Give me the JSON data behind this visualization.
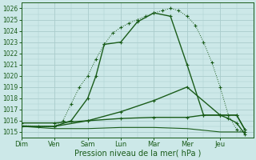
{
  "x_labels": [
    "Dim",
    "Ven",
    "Sam",
    "Lun",
    "Mar",
    "Mer",
    "Jeu"
  ],
  "x_ticks": [
    0,
    2,
    4,
    6,
    8,
    10,
    12
  ],
  "x_max": 14,
  "xlabel": "Pression niveau de la mer( hPa )",
  "ylim": [
    1014.5,
    1026.5
  ],
  "yticks": [
    1015,
    1016,
    1017,
    1018,
    1019,
    1020,
    1021,
    1022,
    1023,
    1024,
    1025,
    1026
  ],
  "bg_color": "#cce8e8",
  "grid_color": "#aacccc",
  "line_color": "#1a5c1a",
  "series": [
    {
      "x": [
        0.0,
        1.0,
        2.0,
        2.5,
        3.0,
        3.5,
        4.0,
        4.5,
        5.0,
        5.5,
        6.0,
        6.5,
        7.0,
        7.5,
        8.0,
        8.5,
        9.0,
        9.5,
        10.0,
        10.5,
        11.0,
        11.5,
        12.0,
        12.5,
        13.0,
        13.5
      ],
      "y": [
        1015.6,
        1015.5,
        1015.5,
        1016.0,
        1017.5,
        1019.0,
        1020.0,
        1021.5,
        1022.8,
        1023.8,
        1024.3,
        1024.7,
        1025.0,
        1025.3,
        1025.6,
        1025.8,
        1026.0,
        1025.8,
        1025.3,
        1024.5,
        1023.0,
        1021.2,
        1019.0,
        1016.5,
        1015.2,
        1015.0
      ],
      "marker": "+",
      "markersize": 2.5,
      "linewidth": 0.7,
      "linestyle": "dotted"
    },
    {
      "x": [
        0.0,
        2.0,
        3.0,
        4.0,
        4.5,
        5.0,
        6.0,
        7.0,
        8.0,
        9.0,
        10.0,
        11.0,
        12.0,
        13.0,
        13.5
      ],
      "y": [
        1015.5,
        1015.5,
        1016.0,
        1018.0,
        1020.0,
        1022.8,
        1023.0,
        1024.8,
        1025.6,
        1025.3,
        1021.0,
        1016.5,
        1016.5,
        1016.5,
        1015.2
      ],
      "marker": "+",
      "markersize": 3,
      "linewidth": 1.0,
      "linestyle": "solid"
    },
    {
      "x": [
        0.0,
        2.0,
        4.0,
        6.0,
        8.0,
        10.0,
        12.0,
        13.0,
        13.5
      ],
      "y": [
        1015.5,
        1015.5,
        1016.0,
        1016.8,
        1017.8,
        1019.0,
        1016.5,
        1016.5,
        1015.2
      ],
      "marker": "+",
      "markersize": 3,
      "linewidth": 1.0,
      "linestyle": "solid"
    },
    {
      "x": [
        0.0,
        2.0,
        4.0,
        6.0,
        8.0,
        10.0,
        12.0,
        13.0,
        13.5
      ],
      "y": [
        1015.5,
        1015.3,
        1015.3,
        1015.4,
        1015.4,
        1015.3,
        1015.0,
        1015.0,
        1015.0
      ],
      "marker": null,
      "markersize": 2,
      "linewidth": 0.8,
      "linestyle": "solid"
    },
    {
      "x": [
        0.0,
        2.0,
        4.0,
        6.0,
        8.0,
        10.0,
        11.0,
        12.0,
        12.5,
        13.0,
        13.5
      ],
      "y": [
        1015.8,
        1015.8,
        1016.0,
        1016.2,
        1016.3,
        1016.3,
        1016.5,
        1016.5,
        1016.2,
        1015.8,
        1014.8
      ],
      "marker": "+",
      "markersize": 3,
      "linewidth": 1.0,
      "linestyle": "solid"
    }
  ]
}
